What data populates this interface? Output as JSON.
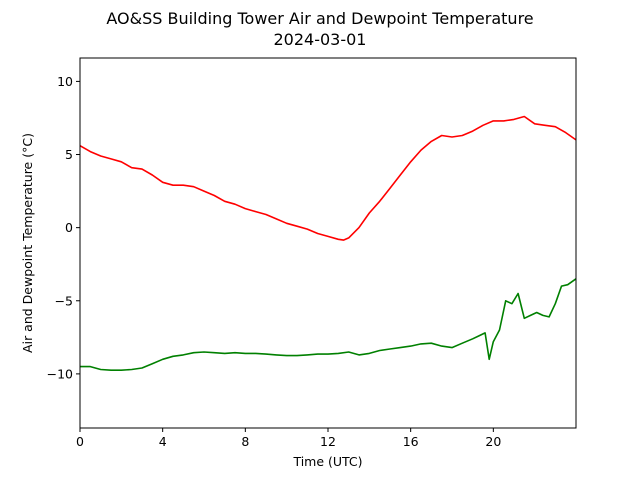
{
  "chart_data": {
    "type": "line",
    "title": "AO&SS Building Tower Air and Dewpoint Temperature",
    "subtitle": "2024-03-01",
    "xlabel": "Time (UTC)",
    "ylabel": "Air and Dewpoint Temperature (°C)",
    "xlim": [
      0,
      24
    ],
    "ylim": [
      -13.7,
      11.6
    ],
    "xticks": [
      0,
      4,
      8,
      12,
      16,
      20
    ],
    "yticks": [
      -10,
      -5,
      0,
      5,
      10
    ],
    "grid": false,
    "series": [
      {
        "color": "#ff0000",
        "x": [
          0,
          0.5,
          1,
          1.5,
          2,
          2.5,
          3,
          3.5,
          4,
          4.5,
          5,
          5.5,
          6,
          6.5,
          7,
          7.5,
          8,
          8.5,
          9,
          9.5,
          10,
          10.5,
          11,
          11.5,
          12,
          12.5,
          12.75,
          13,
          13.5,
          14,
          14.5,
          15,
          15.5,
          16,
          16.5,
          17,
          17.5,
          18,
          18.5,
          19,
          19.5,
          20,
          20.5,
          21,
          21.5,
          22,
          22.5,
          23,
          23.5,
          24
        ],
        "y": [
          5.6,
          5.2,
          4.9,
          4.7,
          4.5,
          4.1,
          4.0,
          3.6,
          3.1,
          2.9,
          2.9,
          2.8,
          2.5,
          2.2,
          1.8,
          1.6,
          1.3,
          1.1,
          0.9,
          0.6,
          0.3,
          0.1,
          -0.1,
          -0.4,
          -0.6,
          -0.8,
          -0.85,
          -0.7,
          0.0,
          1.0,
          1.8,
          2.7,
          3.6,
          4.5,
          5.3,
          5.9,
          6.3,
          6.2,
          6.3,
          6.6,
          7.0,
          7.3,
          7.3,
          7.4,
          7.6,
          7.1,
          7.0,
          6.9,
          6.5,
          6.0
        ]
      },
      {
        "color": "#008000",
        "x": [
          0,
          0.5,
          1,
          1.5,
          2,
          2.5,
          3,
          3.5,
          4,
          4.5,
          5,
          5.5,
          6,
          6.5,
          7,
          7.5,
          8,
          8.5,
          9,
          9.5,
          10,
          10.5,
          11,
          11.5,
          12,
          12.5,
          13,
          13.5,
          14,
          14.5,
          15,
          15.5,
          16,
          16.5,
          17,
          17.5,
          18,
          18.5,
          19,
          19.3,
          19.6,
          19.8,
          20,
          20.3,
          20.6,
          20.9,
          21.2,
          21.5,
          21.8,
          22.1,
          22.4,
          22.7,
          23,
          23.3,
          23.6,
          24
        ],
        "y": [
          -9.5,
          -9.5,
          -9.7,
          -9.75,
          -9.75,
          -9.7,
          -9.6,
          -9.3,
          -9.0,
          -8.8,
          -8.7,
          -8.55,
          -8.5,
          -8.55,
          -8.6,
          -8.55,
          -8.6,
          -8.6,
          -8.65,
          -8.7,
          -8.75,
          -8.75,
          -8.7,
          -8.65,
          -8.65,
          -8.6,
          -8.5,
          -8.7,
          -8.6,
          -8.4,
          -8.3,
          -8.2,
          -8.1,
          -7.95,
          -7.9,
          -8.1,
          -8.2,
          -7.9,
          -7.6,
          -7.4,
          -7.2,
          -9.0,
          -7.8,
          -7.0,
          -5.0,
          -5.2,
          -4.5,
          -6.2,
          -6.0,
          -5.8,
          -6.0,
          -6.1,
          -5.2,
          -4.0,
          -3.9,
          -3.5
        ]
      }
    ]
  }
}
